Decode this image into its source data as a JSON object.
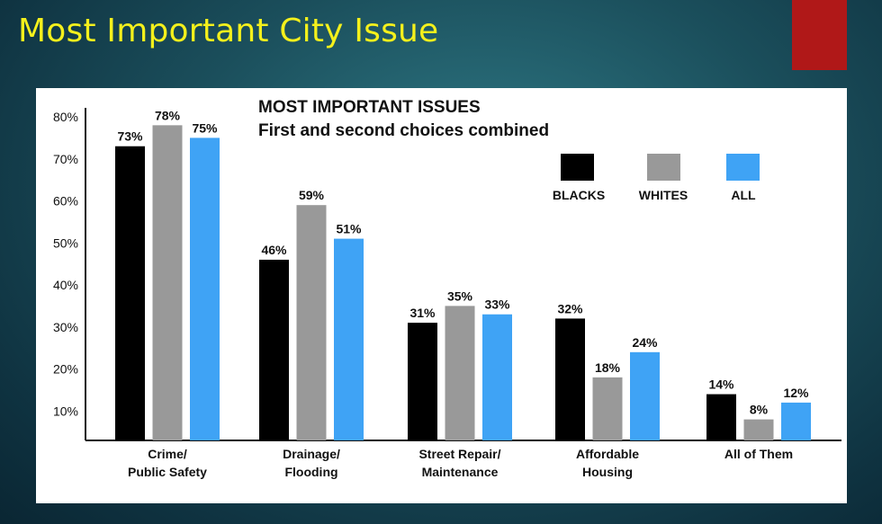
{
  "slide": {
    "title": "Most Important City Issue",
    "accent_color": "#b01818",
    "title_color": "#f4f01c"
  },
  "chart_data": {
    "type": "bar",
    "title": "MOST IMPORTANT ISSUES",
    "subtitle": "First and second choices combined",
    "categories": [
      [
        "Crime/",
        "Public Safety"
      ],
      [
        "Drainage/",
        "Flooding"
      ],
      [
        "Street Repair/",
        "Maintenance"
      ],
      [
        "Affordable",
        "Housing"
      ],
      [
        "All of Them"
      ]
    ],
    "series": [
      {
        "name": "BLACKS",
        "color": "#000000",
        "values": [
          73,
          46,
          31,
          32,
          14
        ]
      },
      {
        "name": "WHITES",
        "color": "#999999",
        "values": [
          78,
          59,
          35,
          18,
          8
        ]
      },
      {
        "name": "ALL",
        "color": "#3fa3f5",
        "values": [
          75,
          51,
          33,
          24,
          12
        ]
      }
    ],
    "value_suffix": "%",
    "yticks": [
      "10%",
      "20%",
      "30%",
      "40%",
      "50%",
      "60%",
      "70%",
      "80%"
    ],
    "ylim": [
      3,
      80
    ],
    "legend_position": "top-right",
    "grid": false
  }
}
